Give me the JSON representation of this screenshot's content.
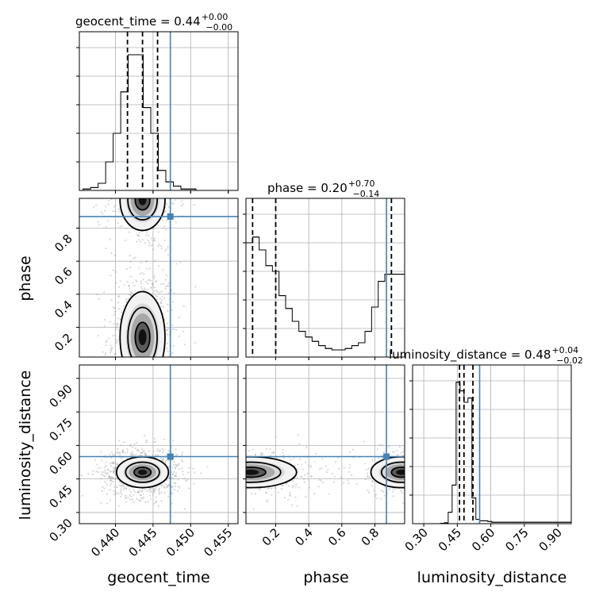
{
  "chart_data": {
    "type": "corner",
    "parameters": [
      "geocent_time",
      "phase",
      "luminosity_distance"
    ],
    "titles": [
      {
        "param": "geocent_time",
        "text": "geocent_time = 0.44",
        "plus": "+0.00",
        "minus": "−0.00"
      },
      {
        "param": "phase",
        "text": "phase = 0.20",
        "plus": "+0.70",
        "minus": "−0.14"
      },
      {
        "param": "luminosity_distance",
        "text": "luminosity_distance = 0.48",
        "plus": "+0.04",
        "minus": "−0.02"
      }
    ],
    "ranges": {
      "geocent_time": [
        0.4352,
        0.4563
      ],
      "phase": [
        0.02,
        0.98
      ],
      "luminosity_distance": [
        0.25,
        0.96
      ]
    },
    "ticks": {
      "geocent_time": [
        "0.440",
        "0.445",
        "0.450",
        "0.455"
      ],
      "phase": [
        "0.2",
        "0.4",
        "0.6",
        "0.8"
      ],
      "luminosity_distance": [
        "0.30",
        "0.45",
        "0.60",
        "0.75",
        "0.90"
      ]
    },
    "truths": {
      "geocent_time": 0.4473,
      "phase": 0.87,
      "luminosity_distance": 0.55
    },
    "quantiles": {
      "geocent_time": [
        0.4416,
        0.4436,
        0.4456
      ],
      "phase": [
        0.06,
        0.2,
        0.9
      ],
      "luminosity_distance": [
        0.46,
        0.48,
        0.52
      ]
    },
    "histograms": {
      "geocent_time": {
        "edges_start": 0.4357,
        "bin_width": 0.001,
        "counts": [
          0.01,
          0.02,
          0.05,
          0.2,
          0.4,
          0.69,
          0.95,
          0.95,
          0.58,
          0.4,
          0.14,
          0.06,
          0.03,
          0.01,
          0.01,
          0.0,
          0.0,
          0.0,
          0.0,
          0.0
        ]
      },
      "phase": {
        "edges_start": 0.02,
        "bin_width": 0.04,
        "counts": [
          0.8,
          0.84,
          0.75,
          0.64,
          0.6,
          0.43,
          0.34,
          0.25,
          0.18,
          0.14,
          0.11,
          0.08,
          0.06,
          0.05,
          0.05,
          0.06,
          0.08,
          0.1,
          0.18,
          0.35,
          0.53,
          0.58,
          0.58,
          0.58
        ]
      },
      "luminosity_distance": {
        "edges_start": 0.25,
        "bin_width": 0.0177,
        "counts": [
          0,
          0,
          0,
          0,
          0,
          0,
          0,
          0.002,
          0.006,
          0.08,
          0.27,
          0.99,
          0.93,
          0.85,
          0.88,
          0.18,
          0.03,
          0.02,
          0.02,
          0.015,
          0.01,
          0.01,
          0.01,
          0.01,
          0.01,
          0.01,
          0.01,
          0.01,
          0.01,
          0.01,
          0.01,
          0.01,
          0.01,
          0.01,
          0.01,
          0.01,
          0.01,
          0.01,
          0.01,
          0.01
        ]
      }
    },
    "density_2d": {
      "phase_vs_geocent_time": {
        "modes": [
          {
            "x": 0.4436,
            "y": 0.14,
            "sx": 0.0013,
            "sy": 0.12,
            "w": 0.7
          },
          {
            "x": 0.4436,
            "y": 0.97,
            "sx": 0.0013,
            "sy": 0.08,
            "w": 0.45
          }
        ]
      },
      "luminosity_distance_vs_geocent_time": {
        "modes": [
          {
            "x": 0.4436,
            "y": 0.48,
            "sx": 0.0015,
            "sy": 0.03,
            "w": 0.9
          }
        ]
      },
      "luminosity_distance_vs_phase": {
        "modes": [
          {
            "x": 0.05,
            "y": 0.48,
            "sx": 0.12,
            "sy": 0.03,
            "w": 0.6
          },
          {
            "x": 0.96,
            "y": 0.48,
            "sx": 0.08,
            "sy": 0.03,
            "w": 0.4
          }
        ]
      }
    },
    "colors": {
      "truth": "#4682b4",
      "hist": "#000000",
      "grid": "#b0b0b0",
      "scatter": "#8c8c8c"
    }
  }
}
